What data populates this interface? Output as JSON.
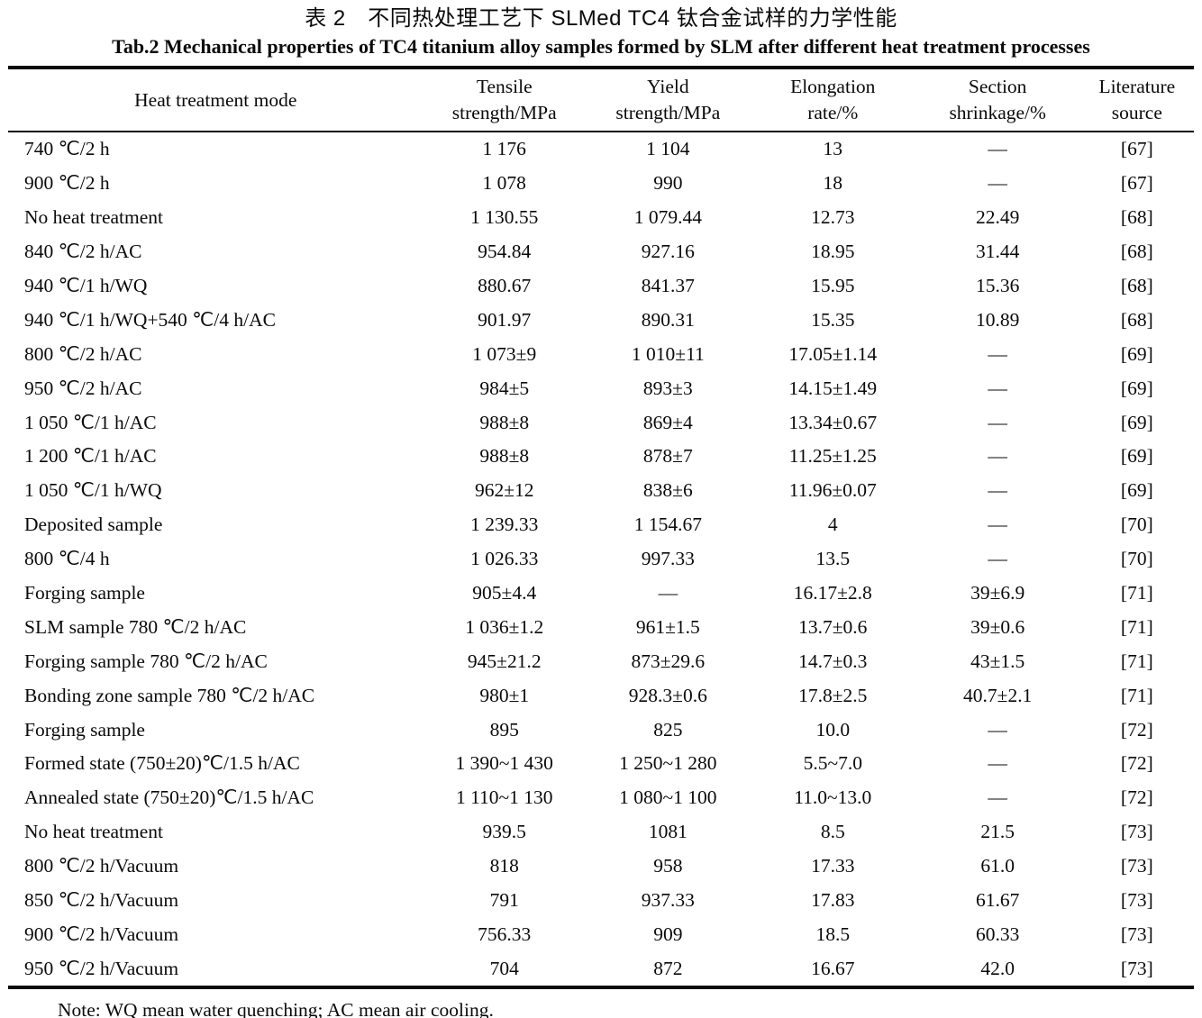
{
  "title_zh": "表 2　不同热处理工艺下 SLMed TC4 钛合金试样的力学性能",
  "title_en": "Tab.2 Mechanical properties of TC4 titanium alloy samples formed by SLM after different heat treatment processes",
  "note": "Note: WQ mean water quenching; AC mean air cooling.",
  "table": {
    "columns": [
      {
        "label": "Heat treatment mode"
      },
      {
        "label": "Tensile\nstrength/MPa"
      },
      {
        "label": "Yield\nstrength/MPa"
      },
      {
        "label": "Elongation\nrate/%"
      },
      {
        "label": "Section\nshrinkage/%"
      },
      {
        "label": "Literature\nsource"
      }
    ],
    "rows": [
      [
        "740 ℃/2 h",
        "1 176",
        "1 104",
        "13",
        "—",
        "[67]"
      ],
      [
        "900 ℃/2 h",
        "1 078",
        "990",
        "18",
        "—",
        "[67]"
      ],
      [
        "No heat treatment",
        "1 130.55",
        "1 079.44",
        "12.73",
        "22.49",
        "[68]"
      ],
      [
        "840 ℃/2 h/AC",
        "954.84",
        "927.16",
        "18.95",
        "31.44",
        "[68]"
      ],
      [
        "940 ℃/1 h/WQ",
        "880.67",
        "841.37",
        "15.95",
        "15.36",
        "[68]"
      ],
      [
        "940 ℃/1 h/WQ+540 ℃/4 h/AC",
        "901.97",
        "890.31",
        "15.35",
        "10.89",
        "[68]"
      ],
      [
        "800 ℃/2 h/AC",
        "1 073±9",
        "1 010±11",
        "17.05±1.14",
        "—",
        "[69]"
      ],
      [
        "950 ℃/2 h/AC",
        "984±5",
        "893±3",
        "14.15±1.49",
        "—",
        "[69]"
      ],
      [
        "1 050 ℃/1 h/AC",
        "988±8",
        "869±4",
        "13.34±0.67",
        "—",
        "[69]"
      ],
      [
        "1 200 ℃/1 h/AC",
        "988±8",
        "878±7",
        "11.25±1.25",
        "—",
        "[69]"
      ],
      [
        "1 050 ℃/1 h/WQ",
        "962±12",
        "838±6",
        "11.96±0.07",
        "—",
        "[69]"
      ],
      [
        "Deposited sample",
        "1 239.33",
        "1 154.67",
        "4",
        "—",
        "[70]"
      ],
      [
        "800 ℃/4 h",
        "1 026.33",
        "997.33",
        "13.5",
        "—",
        "[70]"
      ],
      [
        "Forging sample",
        "905±4.4",
        "—",
        "16.17±2.8",
        "39±6.9",
        "[71]"
      ],
      [
        "SLM sample 780 ℃/2 h/AC",
        "1 036±1.2",
        "961±1.5",
        "13.7±0.6",
        "39±0.6",
        "[71]"
      ],
      [
        "Forging sample 780 ℃/2 h/AC",
        "945±21.2",
        "873±29.6",
        "14.7±0.3",
        "43±1.5",
        "[71]"
      ],
      [
        "Bonding zone sample 780 ℃/2 h/AC",
        "980±1",
        "928.3±0.6",
        "17.8±2.5",
        "40.7±2.1",
        "[71]"
      ],
      [
        "Forging sample",
        "895",
        "825",
        "10.0",
        "—",
        "[72]"
      ],
      [
        "Formed state (750±20)℃/1.5 h/AC",
        "1 390~1 430",
        "1 250~1 280",
        "5.5~7.0",
        "—",
        "[72]"
      ],
      [
        "Annealed state (750±20)℃/1.5 h/AC",
        "1 110~1 130",
        "1 080~1 100",
        "11.0~13.0",
        "—",
        "[72]"
      ],
      [
        "No heat treatment",
        "939.5",
        "1081",
        "8.5",
        "21.5",
        "[73]"
      ],
      [
        "800 ℃/2 h/Vacuum",
        "818",
        "958",
        "17.33",
        "61.0",
        "[73]"
      ],
      [
        "850 ℃/2 h/Vacuum",
        "791",
        "937.33",
        "17.83",
        "61.67",
        "[73]"
      ],
      [
        "900 ℃/2 h/Vacuum",
        "756.33",
        "909",
        "18.5",
        "60.33",
        "[73]"
      ],
      [
        "950 ℃/2 h/Vacuum",
        "704",
        "872",
        "16.67",
        "42.0",
        "[73]"
      ]
    ]
  }
}
